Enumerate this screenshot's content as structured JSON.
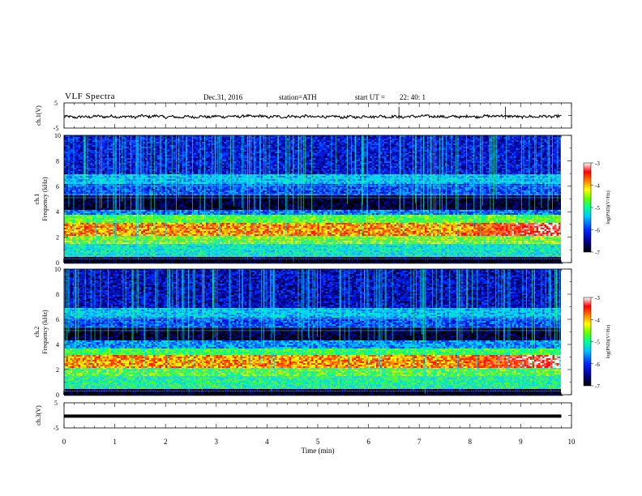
{
  "header": {
    "title": "VLF  Spectra",
    "date": "Dec.31, 2016",
    "station": "station=ATH",
    "start_label": "start  UT  =",
    "start_time": "22: 40: 1"
  },
  "chart_data": [
    {
      "type": "line",
      "title": "",
      "ylabel": "ch.1(V)",
      "xlabel": "",
      "xlim": [
        0,
        10
      ],
      "ylim": [
        -5,
        5
      ],
      "yticks": [
        "5",
        "-5"
      ],
      "series": [
        {
          "name": "",
          "description_values": "waveform near -0.5 V with small fluctuations",
          "values": [
            -0.6,
            -0.4,
            -0.5,
            -0.3,
            -0.6,
            -0.5,
            -0.4,
            -0.3,
            -0.5,
            -0.4,
            -0.5,
            -0.6,
            -0.4,
            -0.5,
            -0.3,
            -0.5,
            -0.4,
            -0.2,
            -0.5,
            -0.4
          ]
        }
      ],
      "color": "#000000"
    },
    {
      "type": "heatmap",
      "title": "",
      "ylabel": "ch.1",
      "ylabel2": "Frequency  (kHz)",
      "xlim": [
        0,
        10
      ],
      "ylim": [
        0,
        10
      ],
      "yticks": [
        "0",
        "2",
        "4",
        "6",
        "8",
        "10"
      ],
      "colorbar": {
        "label": "log(PSD)(V²/Hz)",
        "ticks": [
          "-3",
          "-4",
          "-5",
          "-6",
          "-7"
        ],
        "range": [
          -7,
          -3
        ]
      },
      "bands_khz": [
        {
          "from": 0,
          "to": 0.5,
          "level": -6.8
        },
        {
          "from": 0.5,
          "to": 1.5,
          "level": -5.2
        },
        {
          "from": 1.5,
          "to": 2.2,
          "level": -4.6
        },
        {
          "from": 2.2,
          "to": 3.2,
          "level": -3.9
        },
        {
          "from": 3.2,
          "to": 3.8,
          "level": -4.7
        },
        {
          "from": 3.8,
          "to": 4.2,
          "level": -5.8
        },
        {
          "from": 4.2,
          "to": 5.4,
          "level": -6.9
        },
        {
          "from": 5.4,
          "to": 6.2,
          "level": -6.0
        },
        {
          "from": 6.2,
          "to": 7.0,
          "level": -5.5
        },
        {
          "from": 7.0,
          "to": 10,
          "level": -6.3
        }
      ]
    },
    {
      "type": "heatmap",
      "title": "",
      "ylabel": "ch.2",
      "ylabel2": "Frequency  (kHz)",
      "xlim": [
        0,
        10
      ],
      "ylim": [
        0,
        10
      ],
      "yticks": [
        "0",
        "2",
        "4",
        "6",
        "8",
        "10"
      ],
      "colorbar": {
        "label": "log(PSD)(V²/Hz)",
        "ticks": [
          "-3",
          "-4",
          "-5",
          "-6",
          "-7"
        ],
        "range": [
          -7,
          -3
        ]
      },
      "bands_khz": [
        {
          "from": 0,
          "to": 0.5,
          "level": -6.8
        },
        {
          "from": 0.5,
          "to": 1.5,
          "level": -5.0
        },
        {
          "from": 1.5,
          "to": 2.2,
          "level": -4.7
        },
        {
          "from": 2.2,
          "to": 3.2,
          "level": -3.9
        },
        {
          "from": 3.2,
          "to": 3.8,
          "level": -4.8
        },
        {
          "from": 3.8,
          "to": 4.4,
          "level": -5.7
        },
        {
          "from": 4.4,
          "to": 5.4,
          "level": -6.9
        },
        {
          "from": 5.4,
          "to": 6.2,
          "level": -6.0
        },
        {
          "from": 6.2,
          "to": 7.0,
          "level": -5.5
        },
        {
          "from": 7.0,
          "to": 10,
          "level": -6.4
        }
      ]
    },
    {
      "type": "line",
      "title": "",
      "ylabel": "ch.3(V)",
      "xlabel": "Time  (min)",
      "xlim": [
        0,
        10
      ],
      "ylim": [
        -5,
        5
      ],
      "yticks": [
        "5",
        "-5"
      ],
      "xticks": [
        "0",
        "1",
        "2",
        "3",
        "4",
        "5",
        "6",
        "7",
        "8",
        "9",
        "10"
      ],
      "series": [
        {
          "name": "",
          "values": [
            -0.3,
            -0.3,
            -0.3,
            -0.3,
            -0.3,
            -0.3,
            -0.3,
            -0.3,
            -0.3,
            -0.3
          ]
        }
      ],
      "data_end_min": 9.8,
      "color": "#000000"
    }
  ]
}
